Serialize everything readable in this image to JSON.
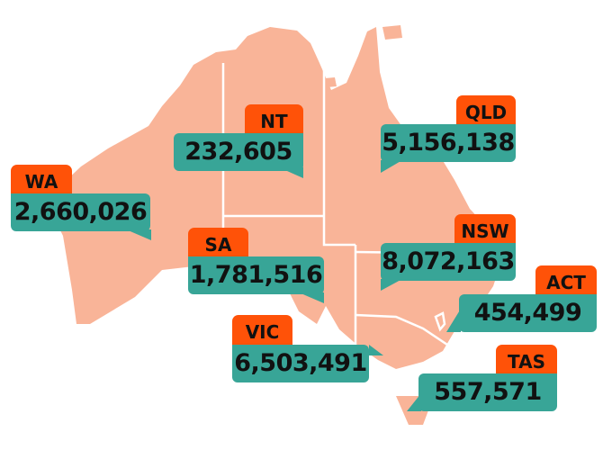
{
  "colors": {
    "land": "#F9B498",
    "border": "#FFFFFF",
    "state_tab": "#FF5208",
    "value_box": "#38A597",
    "text": "#111111"
  },
  "states": [
    {
      "code": "WA",
      "population": "2,660,026"
    },
    {
      "code": "NT",
      "population": "232,605"
    },
    {
      "code": "SA",
      "population": "1,781,516"
    },
    {
      "code": "QLD",
      "population": "5,156,138"
    },
    {
      "code": "NSW",
      "population": "8,072,163"
    },
    {
      "code": "ACT",
      "population": "454,499"
    },
    {
      "code": "VIC",
      "population": "6,503,491"
    },
    {
      "code": "TAS",
      "population": "557,571"
    }
  ]
}
